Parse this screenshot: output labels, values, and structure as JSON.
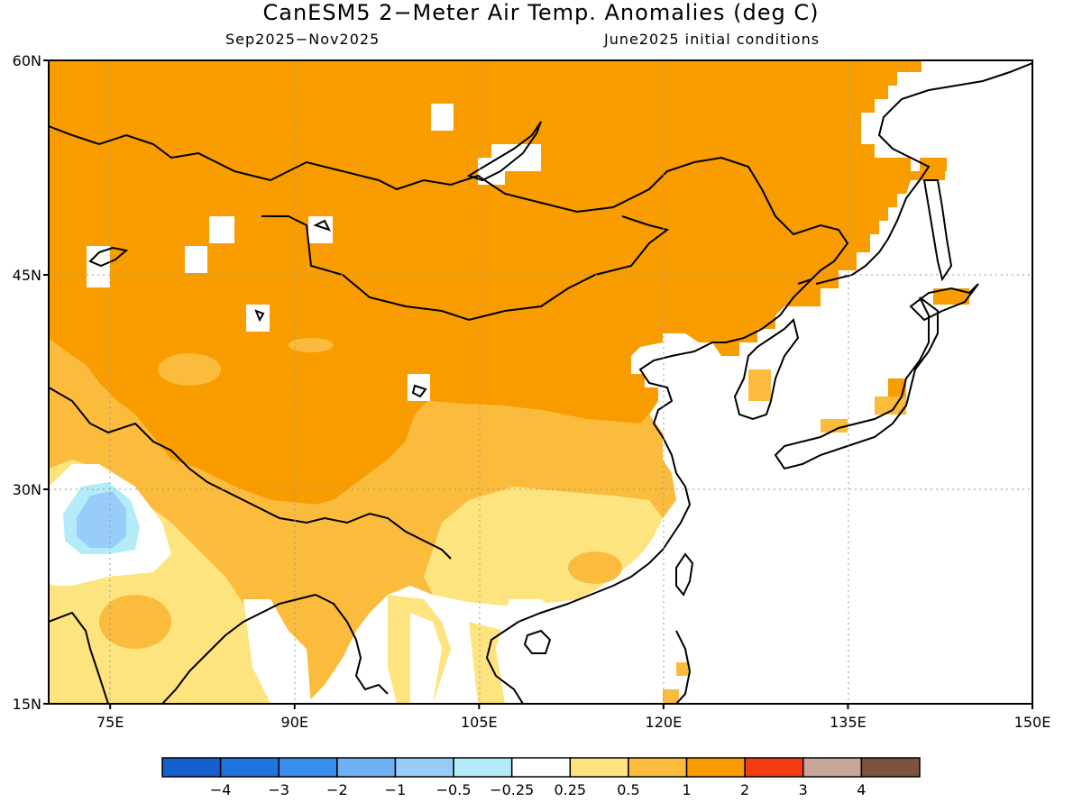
{
  "title": "CanESM5 2−Meter Air Temp. Anomalies (deg C)",
  "period": "Sep2025−Nov2025",
  "init": "June2025 initial conditions",
  "map": {
    "lat_labels": [
      "60N",
      "45N",
      "30N",
      "15N"
    ],
    "lon_labels": [
      "75E",
      "90E",
      "105E",
      "120E",
      "135E",
      "150E"
    ],
    "lat_values": [
      60,
      45,
      30,
      15
    ],
    "lon_values": [
      75,
      90,
      105,
      120,
      135,
      150
    ],
    "lon_range": [
      70,
      150
    ],
    "lat_range": [
      15,
      60
    ]
  },
  "colorbar": {
    "labels": [
      "−4",
      "−3",
      "−2",
      "−1",
      "−0.5",
      "−0.25",
      "0.25",
      "0.5",
      "1",
      "2",
      "3",
      "4"
    ],
    "colors": [
      "#1560cf",
      "#1f74e0",
      "#3a8fee",
      "#6fb1f3",
      "#97cdf8",
      "#b3ecf8",
      "#ffffff",
      "#fee47f",
      "#fbbb3c",
      "#f89c00",
      "#f53c10",
      "#c9a59a",
      "#7e5241"
    ]
  },
  "colors": {
    "anom_1_2": "#f89c00",
    "anom_05_1": "#fbbb3c",
    "anom_025_05": "#fee47f",
    "neg_025_05": "#b3ecf8",
    "neg_05_1": "#97cdf8",
    "land_outline": "#000000"
  }
}
